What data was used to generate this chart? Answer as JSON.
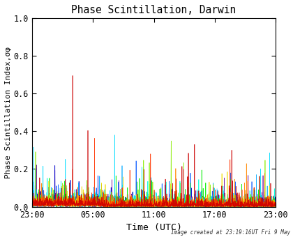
{
  "title": "Phase Scintillation, Darwin",
  "xlabel": "Time (UTC)",
  "ylabel": "Phase Scintillation Index,σφ",
  "xlim": [
    0,
    1440
  ],
  "ylim": [
    0.0,
    1.0
  ],
  "xtick_positions": [
    0,
    360,
    720,
    1080,
    1440
  ],
  "xtick_labels": [
    "23:00",
    "05:00",
    "11:00",
    "17:00",
    "23:00"
  ],
  "ytick_positions": [
    0.0,
    0.2,
    0.4,
    0.6,
    0.8,
    1.0
  ],
  "background_color": "#ffffff",
  "caption": "Image created at 23:19:16UT Fri 9 May",
  "series_colors": [
    "#660099",
    "#0000cc",
    "#0055ff",
    "#00aaff",
    "#00ddff",
    "#00ffdd",
    "#00ee00",
    "#88ee00",
    "#eedd00",
    "#ff8800",
    "#ff3300",
    "#cc0000"
  ],
  "seed": 42,
  "n_points": 1440,
  "base_scale": 0.012,
  "spike_scale": 0.06
}
